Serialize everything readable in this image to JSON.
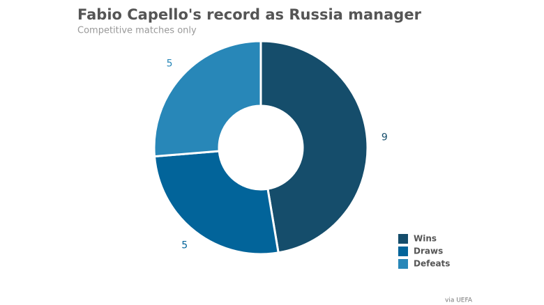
{
  "chart_data": {
    "type": "donut",
    "title": "Fabio Capello's record as Russia manager",
    "subtitle": "Competitive matches only",
    "categories": [
      "Wins",
      "Draws",
      "Defeats"
    ],
    "values": [
      9,
      5,
      5
    ],
    "colors": [
      "#154d6b",
      "#02649a",
      "#2887b8"
    ],
    "legend": "bottom-right",
    "source": "via UEFA"
  }
}
